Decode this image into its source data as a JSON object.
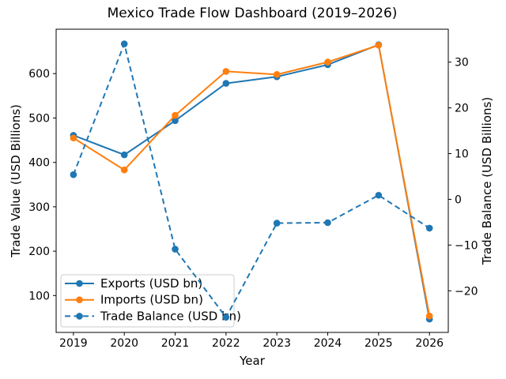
{
  "chart_data": {
    "type": "line",
    "title": "Mexico Trade Flow Dashboard (2019–2026)",
    "xlabel": "Year",
    "ylabel_left": "Trade Value (USD Billions)",
    "ylabel_right": "Trade Balance (USD Billions)",
    "x": [
      2019,
      2020,
      2021,
      2022,
      2023,
      2024,
      2025,
      2026
    ],
    "series": [
      {
        "name": "Exports (USD bn)",
        "axis": "left",
        "color": "#1f77b4",
        "style": "solid",
        "values": [
          461,
          417,
          494,
          578,
          593,
          620,
          665,
          47
        ]
      },
      {
        "name": "Imports (USD bn)",
        "axis": "left",
        "color": "#ff7f0e",
        "style": "solid",
        "values": [
          455,
          383,
          506,
          605,
          598,
          626,
          664,
          54
        ]
      },
      {
        "name": "Trade Balance (USD bn)",
        "axis": "right",
        "color": "#1f77b4",
        "style": "dashed",
        "values": [
          5.4,
          34.0,
          -10.9,
          -25.8,
          -5.2,
          -5.1,
          0.9,
          -6.3
        ]
      }
    ],
    "xlim": [
      2018.66,
      2026.37
    ],
    "ylim_left": [
      17,
      700
    ],
    "ylim_right": [
      -29.1,
      37.2
    ],
    "yticks_left": [
      100,
      200,
      300,
      400,
      500,
      600
    ],
    "yticks_right": [
      -20,
      -10,
      0,
      10,
      20,
      30
    ],
    "grid": false,
    "legend": {
      "position": "lower left",
      "frame": true
    }
  },
  "colors": {
    "exports": "#1f77b4",
    "imports": "#ff7f0e",
    "trade_balance": "#1f77b4",
    "background": "#ffffff",
    "spine": "#000000",
    "legend_border": "#cccccc"
  }
}
